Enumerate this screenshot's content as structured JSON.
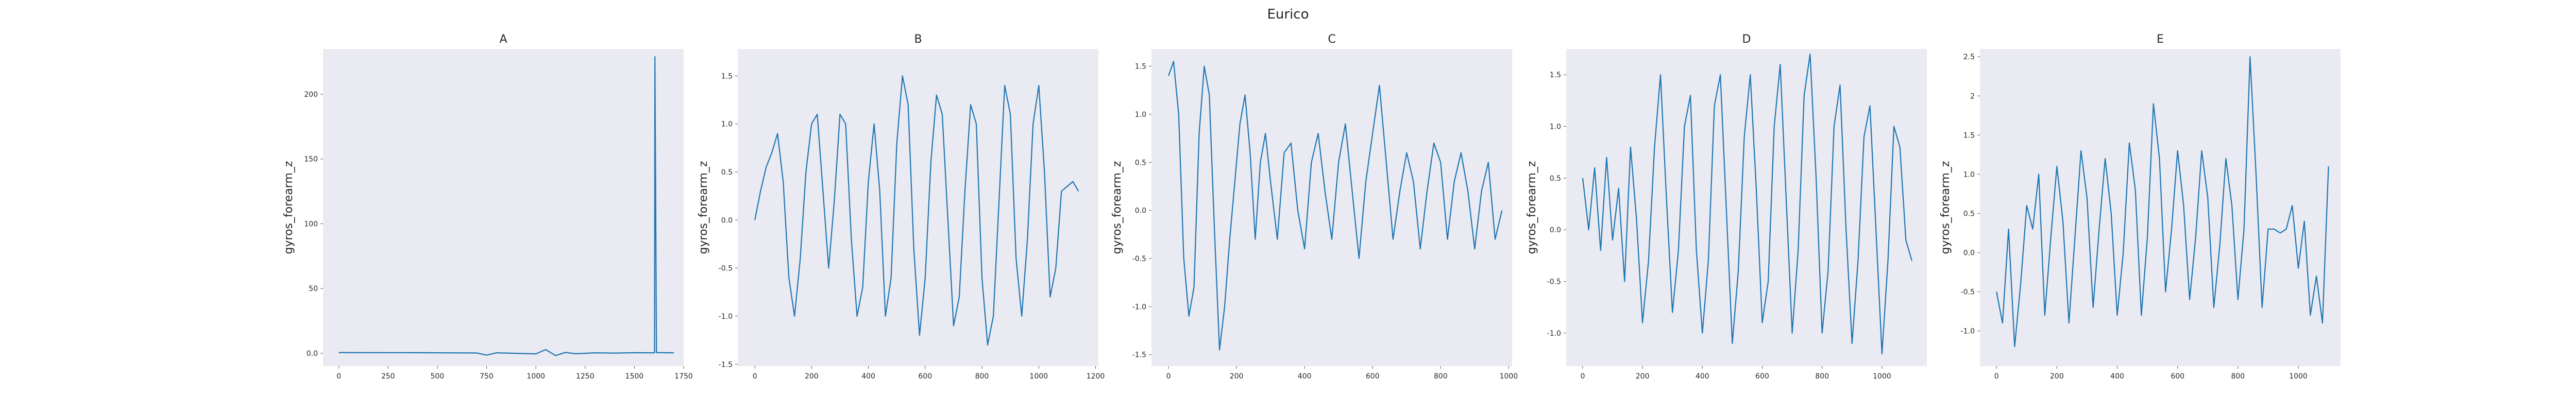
{
  "figure": {
    "title": "Eurico"
  },
  "chart_data": [
    {
      "type": "line",
      "panel": "A",
      "title": "A",
      "xlabel": "",
      "ylabel": "gyros_forearm_z",
      "xlim": [
        -80,
        1750
      ],
      "ylim": [
        -10,
        235
      ],
      "grid": false,
      "xticks": [
        0,
        250,
        500,
        750,
        1000,
        1250,
        1500,
        1750
      ],
      "yticks": [
        0,
        50,
        100,
        150,
        200
      ],
      "series": [
        {
          "x": [
            0,
            400,
            700,
            750,
            800,
            1000,
            1050,
            1100,
            1150,
            1200,
            1300,
            1400,
            1500,
            1590,
            1602,
            1604,
            1612,
            1700
          ],
          "y": [
            0.5,
            0.4,
            0.2,
            -1.5,
            0.3,
            -0.5,
            2.8,
            -1.8,
            0.6,
            -0.4,
            0.3,
            0.1,
            0.4,
            0.3,
            0.4,
            229,
            0.5,
            0.3
          ]
        }
      ]
    },
    {
      "type": "line",
      "panel": "B",
      "title": "B",
      "xlabel": "",
      "ylabel": "gyros_forearm_z",
      "xlim": [
        -60,
        1210
      ],
      "ylim": [
        -1.52,
        1.78
      ],
      "grid": false,
      "xticks": [
        0,
        200,
        400,
        600,
        800,
        1000,
        1200
      ],
      "yticks": [
        -1.5,
        -1.0,
        -0.5,
        0.0,
        0.5,
        1.0,
        1.5
      ],
      "series": [
        {
          "x": [
            0,
            20,
            40,
            60,
            80,
            100,
            120,
            140,
            160,
            180,
            200,
            220,
            240,
            260,
            280,
            300,
            320,
            340,
            360,
            380,
            400,
            420,
            440,
            460,
            480,
            500,
            520,
            540,
            560,
            580,
            600,
            620,
            640,
            660,
            680,
            700,
            720,
            740,
            760,
            780,
            800,
            820,
            840,
            860,
            880,
            900,
            920,
            940,
            960,
            980,
            1000,
            1020,
            1040,
            1060,
            1080,
            1100,
            1120,
            1140
          ],
          "y": [
            0.0,
            0.3,
            0.55,
            0.7,
            0.9,
            0.4,
            -0.6,
            -1.0,
            -0.4,
            0.5,
            1.0,
            1.1,
            0.3,
            -0.5,
            0.2,
            1.1,
            1.0,
            -0.2,
            -1.0,
            -0.7,
            0.4,
            1.0,
            0.3,
            -1.0,
            -0.6,
            0.8,
            1.5,
            1.2,
            -0.3,
            -1.2,
            -0.6,
            0.6,
            1.3,
            1.1,
            0.0,
            -1.1,
            -0.8,
            0.3,
            1.2,
            1.0,
            -0.6,
            -1.3,
            -1.0,
            0.2,
            1.4,
            1.1,
            -0.4,
            -1.0,
            -0.2,
            1.0,
            1.4,
            0.5,
            -0.8,
            -0.5,
            0.3,
            0.35,
            0.4,
            0.3
          ]
        }
      ]
    },
    {
      "type": "line",
      "panel": "C",
      "title": "C",
      "xlabel": "",
      "ylabel": "gyros_forearm_z",
      "xlim": [
        -50,
        1010
      ],
      "ylim": [
        -1.62,
        1.68
      ],
      "grid": false,
      "xticks": [
        0,
        200,
        400,
        600,
        800,
        1000
      ],
      "yticks": [
        -1.5,
        -1.0,
        -0.5,
        0.0,
        0.5,
        1.0,
        1.5
      ],
      "series": [
        {
          "x": [
            0,
            15,
            30,
            45,
            60,
            75,
            90,
            105,
            120,
            135,
            150,
            165,
            180,
            195,
            210,
            225,
            240,
            255,
            270,
            285,
            300,
            320,
            340,
            360,
            380,
            400,
            420,
            440,
            460,
            480,
            500,
            520,
            540,
            560,
            580,
            600,
            620,
            640,
            660,
            680,
            700,
            720,
            740,
            760,
            780,
            800,
            820,
            840,
            860,
            880,
            900,
            920,
            940,
            960,
            980
          ],
          "y": [
            1.4,
            1.55,
            1.0,
            -0.5,
            -1.1,
            -0.8,
            0.8,
            1.5,
            1.2,
            -0.2,
            -1.45,
            -1.0,
            -0.3,
            0.3,
            0.9,
            1.2,
            0.6,
            -0.3,
            0.5,
            0.8,
            0.3,
            -0.3,
            0.6,
            0.7,
            0.0,
            -0.4,
            0.5,
            0.8,
            0.2,
            -0.3,
            0.5,
            0.9,
            0.2,
            -0.5,
            0.3,
            0.8,
            1.3,
            0.5,
            -0.3,
            0.2,
            0.6,
            0.3,
            -0.4,
            0.2,
            0.7,
            0.5,
            -0.3,
            0.3,
            0.6,
            0.2,
            -0.4,
            0.2,
            0.5,
            -0.3,
            0.0
          ]
        }
      ]
    },
    {
      "type": "line",
      "panel": "D",
      "title": "D",
      "xlabel": "",
      "ylabel": "gyros_forearm_z",
      "xlim": [
        -55,
        1150
      ],
      "ylim": [
        -1.32,
        1.75
      ],
      "grid": false,
      "xticks": [
        0,
        200,
        400,
        600,
        800,
        1000
      ],
      "yticks": [
        -1.0,
        -0.5,
        0.0,
        0.5,
        1.0,
        1.5
      ],
      "series": [
        {
          "x": [
            0,
            20,
            40,
            60,
            80,
            100,
            120,
            140,
            160,
            180,
            200,
            220,
            240,
            260,
            280,
            300,
            320,
            340,
            360,
            380,
            400,
            420,
            440,
            460,
            480,
            500,
            520,
            540,
            560,
            580,
            600,
            620,
            640,
            660,
            680,
            700,
            720,
            740,
            760,
            780,
            800,
            820,
            840,
            860,
            880,
            900,
            920,
            940,
            960,
            980,
            1000,
            1020,
            1040,
            1060,
            1080,
            1100
          ],
          "y": [
            0.5,
            0.0,
            0.6,
            -0.2,
            0.7,
            -0.1,
            0.4,
            -0.5,
            0.8,
            0.1,
            -0.9,
            -0.3,
            0.8,
            1.5,
            0.3,
            -0.8,
            -0.2,
            1.0,
            1.3,
            -0.2,
            -1.0,
            -0.3,
            1.2,
            1.5,
            0.2,
            -1.1,
            -0.4,
            0.9,
            1.5,
            0.4,
            -0.9,
            -0.5,
            1.0,
            1.6,
            0.3,
            -1.0,
            -0.2,
            1.3,
            1.7,
            0.5,
            -1.0,
            -0.4,
            1.0,
            1.4,
            0.0,
            -1.1,
            -0.3,
            0.9,
            1.2,
            0.0,
            -1.2,
            -0.3,
            1.0,
            0.8,
            -0.1,
            -0.3
          ]
        }
      ]
    },
    {
      "type": "line",
      "panel": "E",
      "title": "E",
      "xlabel": "",
      "ylabel": "gyros_forearm_z",
      "xlim": [
        -55,
        1140
      ],
      "ylim": [
        -1.45,
        2.6
      ],
      "grid": false,
      "xticks": [
        0,
        200,
        400,
        600,
        800,
        1000
      ],
      "yticks": [
        -1.0,
        -0.5,
        0.0,
        0.5,
        1.0,
        1.5,
        2.0,
        2.5
      ],
      "series": [
        {
          "x": [
            0,
            20,
            40,
            60,
            80,
            100,
            120,
            140,
            160,
            180,
            200,
            220,
            240,
            260,
            280,
            300,
            320,
            340,
            360,
            380,
            400,
            420,
            440,
            460,
            480,
            500,
            520,
            540,
            560,
            580,
            600,
            620,
            640,
            660,
            680,
            700,
            720,
            740,
            760,
            780,
            800,
            820,
            840,
            860,
            880,
            900,
            920,
            940,
            960,
            980,
            1000,
            1020,
            1040,
            1060,
            1080,
            1100
          ],
          "y": [
            -0.5,
            -0.9,
            0.3,
            -1.2,
            -0.4,
            0.6,
            0.3,
            1.0,
            -0.8,
            0.2,
            1.1,
            0.4,
            -0.9,
            0.2,
            1.3,
            0.7,
            -0.7,
            0.3,
            1.2,
            0.5,
            -0.8,
            0.0,
            1.4,
            0.8,
            -0.8,
            0.2,
            1.9,
            1.2,
            -0.5,
            0.3,
            1.3,
            0.6,
            -0.6,
            0.2,
            1.3,
            0.7,
            -0.7,
            0.1,
            1.2,
            0.6,
            -0.6,
            0.3,
            2.5,
            1.0,
            -0.7,
            0.3,
            0.3,
            0.25,
            0.3,
            0.6,
            -0.2,
            0.4,
            -0.8,
            -0.3,
            -0.9,
            1.1
          ]
        }
      ]
    }
  ]
}
